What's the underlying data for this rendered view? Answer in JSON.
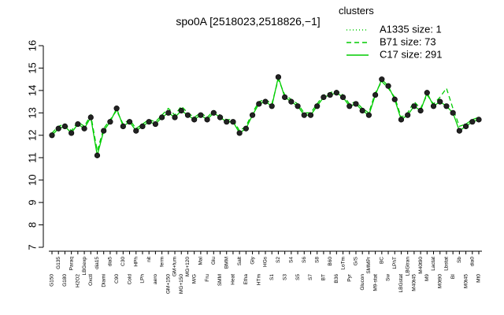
{
  "chart_data": {
    "type": "line",
    "title": "spo0A [2518023,2518826,−1]",
    "legend_title": "clusters",
    "legend_position": "top-right",
    "categories": [
      "G150",
      "G135",
      "G180",
      "Paraq",
      "H2O2",
      "LBGexp",
      "Oxctl",
      "dia15",
      "Diami",
      "dia5",
      "C90",
      "C30",
      "Cold",
      "HPh",
      "LPh",
      "nit",
      "aero",
      "ferm",
      "GM+150",
      "GM+fum",
      "MG+150",
      "MG+120",
      "M/G",
      "Mal",
      "Fru",
      "Glu",
      "SMM",
      "BMM",
      "Heat",
      "Salt",
      "Etha",
      "Gly",
      "HTm",
      "HGs",
      "S1",
      "S2",
      "S3",
      "S4",
      "S5",
      "S6",
      "S7",
      "S8",
      "BT",
      "B60",
      "B36",
      "LoTm",
      "Pyr",
      "G/S",
      "Glucon",
      "SMMPr",
      "M9-stat",
      "BC",
      "Sw",
      "LPhT",
      "LBGstat",
      "LBGtran",
      "M40t45",
      "M40t90",
      "M9",
      "Lactat",
      "M0t90",
      "Lbstat",
      "BI",
      "Sb",
      "M0t45",
      "dia0",
      "Mt0"
    ],
    "series": [
      {
        "name": "A1335 size: 1",
        "color": "#00cc00",
        "style": "dotted",
        "values": [
          null,
          null,
          null,
          null,
          null,
          null,
          null,
          null,
          null,
          null,
          null,
          null,
          null,
          null,
          null,
          null,
          null,
          null,
          null,
          null,
          null,
          null,
          null,
          null,
          null,
          null,
          null,
          null,
          null,
          null,
          null,
          null,
          null,
          null,
          null,
          null,
          null,
          null,
          null,
          null,
          null,
          null,
          null,
          null,
          null,
          null,
          null,
          null,
          null,
          null,
          null,
          null,
          null,
          null,
          null,
          null,
          null,
          null,
          null,
          null,
          null,
          null,
          null,
          null,
          null,
          null,
          null
        ]
      },
      {
        "name": "B71 size: 73",
        "color": "#00cc00",
        "style": "dashed",
        "values": [
          12.1,
          12.4,
          12.5,
          12.2,
          12.6,
          12.4,
          12.9,
          11.3,
          12.3,
          12.7,
          13.1,
          12.5,
          12.7,
          12.3,
          12.5,
          12.7,
          12.6,
          12.9,
          13.2,
          12.9,
          13.3,
          13.0,
          12.8,
          13.0,
          12.8,
          13.1,
          12.9,
          12.7,
          12.7,
          12.2,
          12.4,
          13.0,
          13.5,
          13.6,
          13.4,
          14.5,
          13.8,
          13.6,
          13.4,
          13.0,
          13.0,
          13.4,
          13.8,
          13.9,
          14.0,
          13.8,
          13.4,
          13.5,
          13.2,
          13.0,
          13.9,
          14.4,
          14.1,
          13.7,
          12.8,
          13.0,
          13.5,
          13.2,
          13.8,
          13.4,
          13.7,
          14.1,
          13.2,
          12.4,
          12.5,
          12.7,
          12.8
        ]
      },
      {
        "name": "C17 size: 291",
        "color": "#00cc00",
        "style": "solid",
        "values": [
          12.0,
          12.3,
          12.4,
          12.1,
          12.5,
          12.3,
          12.8,
          11.1,
          12.2,
          12.6,
          13.2,
          12.4,
          12.6,
          12.2,
          12.4,
          12.6,
          12.5,
          12.8,
          13.0,
          12.8,
          13.1,
          12.9,
          12.7,
          12.9,
          12.7,
          13.0,
          12.8,
          12.6,
          12.6,
          12.1,
          12.3,
          12.9,
          13.4,
          13.5,
          13.3,
          14.6,
          13.7,
          13.5,
          13.3,
          12.9,
          12.9,
          13.3,
          13.7,
          13.8,
          13.9,
          13.7,
          13.3,
          13.4,
          13.1,
          12.9,
          13.8,
          14.5,
          14.2,
          13.6,
          12.7,
          12.9,
          13.3,
          13.1,
          13.9,
          13.3,
          13.5,
          13.3,
          13.0,
          12.2,
          12.4,
          12.6,
          12.7
        ]
      }
    ],
    "ylim": [
      7,
      16
    ],
    "yticks": [
      7,
      8,
      9,
      10,
      11,
      12,
      13,
      14,
      15,
      16
    ]
  }
}
